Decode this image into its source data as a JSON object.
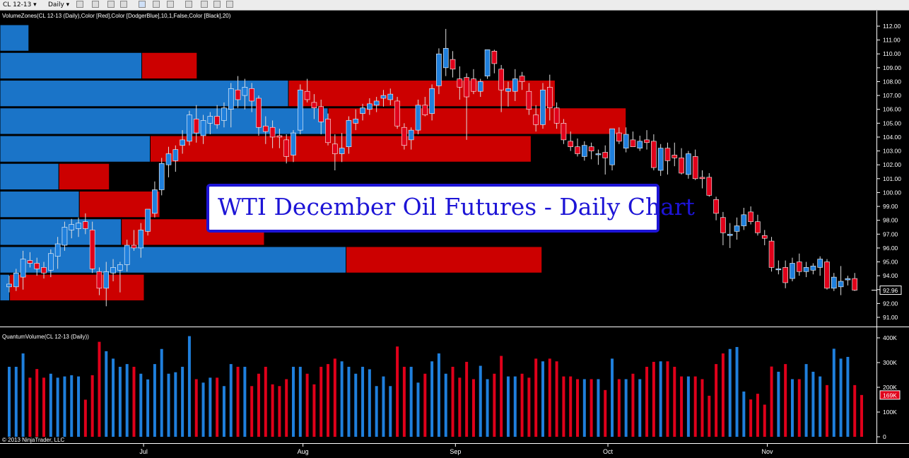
{
  "toolbar": {
    "instrument": "CL 12-13",
    "period": "Daily"
  },
  "colors": {
    "up": "#1f7fdc",
    "down": "#e0001a",
    "zone_up": "#1a74c8",
    "zone_down": "#cc0000",
    "title": "#1d14d6",
    "axis": "#ffffff",
    "background": "#000000"
  },
  "overlay_title": "WTI December Oil Futures - Daily Chart",
  "chart_data": [
    {
      "type": "candlestick",
      "indicator_label": "VolumeZones(CL 12-13 (Daily),Color [Red],Color [DodgerBlue],10,1,False,Color [Black],20)",
      "y_ticks": [
        91,
        92,
        93,
        94,
        95,
        96,
        97,
        98,
        99,
        100,
        101,
        102,
        103,
        104,
        105,
        106,
        107,
        108,
        109,
        110,
        111,
        112
      ],
      "y_tick_labels": [
        "91.00",
        "92.00",
        "93.00",
        "94.00",
        "95.00",
        "96.00",
        "97.00",
        "98.00",
        "99.00",
        "100.00",
        "101.00",
        "102.00",
        "103.00",
        "104.00",
        "105.00",
        "106.00",
        "107.00",
        "108.00",
        "109.00",
        "110.00",
        "111.00",
        "112.00"
      ],
      "ylim": [
        90.2,
        112.9
      ],
      "last_price": "92.96",
      "volume_zones": [
        {
          "price_low": 110.2,
          "price_high": 112.1,
          "up": 2.4,
          "down": 0
        },
        {
          "price_low": 108.2,
          "price_high": 110.1,
          "up": 11.8,
          "down": 4.6
        },
        {
          "price_low": 106.2,
          "price_high": 108.1,
          "up": 24.0,
          "down": 22.2
        },
        {
          "price_low": 104.2,
          "price_high": 106.1,
          "up": 27.3,
          "down": 24.8
        },
        {
          "price_low": 102.2,
          "price_high": 104.1,
          "up": 12.5,
          "down": 31.7
        },
        {
          "price_low": 100.2,
          "price_high": 102.1,
          "up": 4.9,
          "down": 4.2
        },
        {
          "price_low": 98.2,
          "price_high": 100.1,
          "up": 6.6,
          "down": 6.7
        },
        {
          "price_low": 96.2,
          "price_high": 98.1,
          "up": 10.1,
          "down": 11.9
        },
        {
          "price_low": 94.2,
          "price_high": 96.1,
          "up": 28.8,
          "down": 16.3
        },
        {
          "price_low": 92.2,
          "price_high": 94.1,
          "up": 0.8,
          "down": 11.2
        }
      ],
      "candles": [
        {
          "o": 93.2,
          "h": 94.0,
          "l": 92.8,
          "c": 93.4
        },
        {
          "o": 93.2,
          "h": 94.5,
          "l": 92.9,
          "c": 94.2
        },
        {
          "o": 93.9,
          "h": 95.8,
          "l": 93.0,
          "c": 95.2
        },
        {
          "o": 95.1,
          "h": 95.7,
          "l": 94.6,
          "c": 94.9
        },
        {
          "o": 94.9,
          "h": 95.3,
          "l": 94.0,
          "c": 94.5
        },
        {
          "o": 94.6,
          "h": 95.0,
          "l": 93.8,
          "c": 94.2
        },
        {
          "o": 94.4,
          "h": 95.9,
          "l": 93.9,
          "c": 95.6
        },
        {
          "o": 95.4,
          "h": 96.8,
          "l": 94.5,
          "c": 96.3
        },
        {
          "o": 96.2,
          "h": 97.9,
          "l": 95.8,
          "c": 97.5
        },
        {
          "o": 97.3,
          "h": 98.1,
          "l": 96.7,
          "c": 97.7
        },
        {
          "o": 97.4,
          "h": 98.2,
          "l": 96.8,
          "c": 97.8
        },
        {
          "o": 97.9,
          "h": 98.5,
          "l": 97.0,
          "c": 97.4
        },
        {
          "o": 97.3,
          "h": 97.9,
          "l": 94.2,
          "c": 94.5
        },
        {
          "o": 94.3,
          "h": 94.6,
          "l": 92.6,
          "c": 93.1
        },
        {
          "o": 93.1,
          "h": 95.0,
          "l": 91.8,
          "c": 94.3
        },
        {
          "o": 94.2,
          "h": 95.2,
          "l": 93.6,
          "c": 94.6
        },
        {
          "o": 94.4,
          "h": 95.0,
          "l": 92.8,
          "c": 94.8
        },
        {
          "o": 94.8,
          "h": 96.6,
          "l": 94.3,
          "c": 96.2
        },
        {
          "o": 96.2,
          "h": 97.3,
          "l": 95.8,
          "c": 96.0
        },
        {
          "o": 96.0,
          "h": 97.8,
          "l": 95.3,
          "c": 97.3
        },
        {
          "o": 97.2,
          "h": 98.8,
          "l": 96.9,
          "c": 98.8
        },
        {
          "o": 98.5,
          "h": 100.8,
          "l": 98.2,
          "c": 100.2
        },
        {
          "o": 100.2,
          "h": 102.5,
          "l": 99.8,
          "c": 102.1
        },
        {
          "o": 102.0,
          "h": 103.3,
          "l": 101.1,
          "c": 102.8
        },
        {
          "o": 102.3,
          "h": 103.4,
          "l": 101.5,
          "c": 103.1
        },
        {
          "o": 103.4,
          "h": 104.5,
          "l": 102.8,
          "c": 103.8
        },
        {
          "o": 103.7,
          "h": 105.9,
          "l": 103.4,
          "c": 105.6
        },
        {
          "o": 105.3,
          "h": 106.3,
          "l": 103.6,
          "c": 104.3
        },
        {
          "o": 104.1,
          "h": 105.6,
          "l": 103.5,
          "c": 105.2
        },
        {
          "o": 105.0,
          "h": 105.8,
          "l": 104.2,
          "c": 105.5
        },
        {
          "o": 105.5,
          "h": 106.3,
          "l": 104.6,
          "c": 104.9
        },
        {
          "o": 105.2,
          "h": 106.5,
          "l": 104.7,
          "c": 106.1
        },
        {
          "o": 106.0,
          "h": 107.9,
          "l": 104.7,
          "c": 107.5
        },
        {
          "o": 107.4,
          "h": 108.4,
          "l": 106.1,
          "c": 106.7
        },
        {
          "o": 107.0,
          "h": 108.2,
          "l": 106.0,
          "c": 107.6
        },
        {
          "o": 107.5,
          "h": 107.9,
          "l": 105.8,
          "c": 106.6
        },
        {
          "o": 106.8,
          "h": 107.0,
          "l": 104.1,
          "c": 104.7
        },
        {
          "o": 104.8,
          "h": 105.5,
          "l": 103.5,
          "c": 104.4
        },
        {
          "o": 104.7,
          "h": 105.2,
          "l": 103.2,
          "c": 104.0
        },
        {
          "o": 104.1,
          "h": 104.6,
          "l": 103.2,
          "c": 104.0
        },
        {
          "o": 103.8,
          "h": 104.2,
          "l": 102.1,
          "c": 102.6
        },
        {
          "o": 102.7,
          "h": 104.5,
          "l": 102.2,
          "c": 104.3
        },
        {
          "o": 104.5,
          "h": 107.8,
          "l": 104.2,
          "c": 107.4
        },
        {
          "o": 107.3,
          "h": 108.2,
          "l": 106.5,
          "c": 106.7
        },
        {
          "o": 106.5,
          "h": 107.1,
          "l": 105.3,
          "c": 106.1
        },
        {
          "o": 106.2,
          "h": 106.7,
          "l": 104.2,
          "c": 105.1
        },
        {
          "o": 105.3,
          "h": 105.7,
          "l": 103.4,
          "c": 103.6
        },
        {
          "o": 103.5,
          "h": 104.2,
          "l": 101.6,
          "c": 102.8
        },
        {
          "o": 102.8,
          "h": 104.3,
          "l": 102.2,
          "c": 103.2
        },
        {
          "o": 103.3,
          "h": 105.5,
          "l": 102.8,
          "c": 105.2
        },
        {
          "o": 105.0,
          "h": 106.0,
          "l": 104.5,
          "c": 105.3
        },
        {
          "o": 105.7,
          "h": 106.4,
          "l": 105.2,
          "c": 106.1
        },
        {
          "o": 106.0,
          "h": 106.8,
          "l": 105.6,
          "c": 106.4
        },
        {
          "o": 106.3,
          "h": 106.9,
          "l": 105.8,
          "c": 106.6
        },
        {
          "o": 106.8,
          "h": 107.4,
          "l": 106.2,
          "c": 107.0
        },
        {
          "o": 106.7,
          "h": 107.5,
          "l": 106.3,
          "c": 107.1
        },
        {
          "o": 106.6,
          "h": 106.9,
          "l": 104.6,
          "c": 104.8
        },
        {
          "o": 104.7,
          "h": 105.0,
          "l": 103.1,
          "c": 103.4
        },
        {
          "o": 103.8,
          "h": 104.7,
          "l": 103.1,
          "c": 104.5
        },
        {
          "o": 104.5,
          "h": 106.7,
          "l": 104.2,
          "c": 106.3
        },
        {
          "o": 106.3,
          "h": 106.9,
          "l": 105.5,
          "c": 105.6
        },
        {
          "o": 105.7,
          "h": 107.8,
          "l": 105.2,
          "c": 107.5
        },
        {
          "o": 107.7,
          "h": 110.4,
          "l": 107.1,
          "c": 110.0
        },
        {
          "o": 109.0,
          "h": 111.8,
          "l": 108.4,
          "c": 110.4
        },
        {
          "o": 109.6,
          "h": 110.2,
          "l": 108.3,
          "c": 108.9
        },
        {
          "o": 108.2,
          "h": 109.1,
          "l": 106.7,
          "c": 107.6
        },
        {
          "o": 108.3,
          "h": 108.6,
          "l": 103.8,
          "c": 106.9
        },
        {
          "o": 108.2,
          "h": 108.9,
          "l": 107.1,
          "c": 107.3
        },
        {
          "o": 107.3,
          "h": 108.2,
          "l": 106.9,
          "c": 108.0
        },
        {
          "o": 108.4,
          "h": 110.3,
          "l": 108.2,
          "c": 110.3
        },
        {
          "o": 110.2,
          "h": 110.3,
          "l": 108.6,
          "c": 109.3
        },
        {
          "o": 108.9,
          "h": 109.2,
          "l": 105.8,
          "c": 107.4
        },
        {
          "o": 107.3,
          "h": 108.0,
          "l": 106.2,
          "c": 107.5
        },
        {
          "o": 107.3,
          "h": 108.9,
          "l": 106.6,
          "c": 108.2
        },
        {
          "o": 108.4,
          "h": 108.7,
          "l": 107.4,
          "c": 108.0
        },
        {
          "o": 107.3,
          "h": 107.9,
          "l": 105.6,
          "c": 106.0
        },
        {
          "o": 105.6,
          "h": 106.3,
          "l": 104.4,
          "c": 104.9
        },
        {
          "o": 104.9,
          "h": 107.9,
          "l": 104.6,
          "c": 107.4
        },
        {
          "o": 107.6,
          "h": 108.5,
          "l": 105.2,
          "c": 106.1
        },
        {
          "o": 106.1,
          "h": 106.5,
          "l": 104.6,
          "c": 105.0
        },
        {
          "o": 105.0,
          "h": 105.3,
          "l": 103.5,
          "c": 103.8
        },
        {
          "o": 103.7,
          "h": 104.4,
          "l": 103.0,
          "c": 103.3
        },
        {
          "o": 103.3,
          "h": 103.9,
          "l": 102.6,
          "c": 102.8
        },
        {
          "o": 102.6,
          "h": 103.7,
          "l": 102.3,
          "c": 103.4
        },
        {
          "o": 103.3,
          "h": 103.6,
          "l": 102.4,
          "c": 103.0
        },
        {
          "o": 102.8,
          "h": 103.1,
          "l": 102.0,
          "c": 102.8
        },
        {
          "o": 102.9,
          "h": 103.4,
          "l": 101.3,
          "c": 102.5
        },
        {
          "o": 102.0,
          "h": 104.6,
          "l": 101.6,
          "c": 104.6
        },
        {
          "o": 104.3,
          "h": 104.7,
          "l": 103.5,
          "c": 103.7
        },
        {
          "o": 103.2,
          "h": 104.7,
          "l": 102.9,
          "c": 104.2
        },
        {
          "o": 103.8,
          "h": 104.4,
          "l": 103.3,
          "c": 103.3
        },
        {
          "o": 103.2,
          "h": 104.1,
          "l": 103.0,
          "c": 103.7
        },
        {
          "o": 103.8,
          "h": 104.5,
          "l": 103.1,
          "c": 103.6
        },
        {
          "o": 103.7,
          "h": 104.2,
          "l": 101.6,
          "c": 101.8
        },
        {
          "o": 101.6,
          "h": 103.5,
          "l": 101.2,
          "c": 103.2
        },
        {
          "o": 103.2,
          "h": 103.6,
          "l": 101.3,
          "c": 102.3
        },
        {
          "o": 102.7,
          "h": 103.6,
          "l": 101.9,
          "c": 102.5
        },
        {
          "o": 102.5,
          "h": 103.2,
          "l": 101.3,
          "c": 101.4
        },
        {
          "o": 101.3,
          "h": 103.0,
          "l": 101.0,
          "c": 102.8
        },
        {
          "o": 102.6,
          "h": 103.1,
          "l": 100.9,
          "c": 101.0
        },
        {
          "o": 101.1,
          "h": 101.6,
          "l": 100.3,
          "c": 101.0
        },
        {
          "o": 101.1,
          "h": 101.4,
          "l": 99.7,
          "c": 99.8
        },
        {
          "o": 99.5,
          "h": 99.7,
          "l": 98.0,
          "c": 98.5
        },
        {
          "o": 98.2,
          "h": 98.6,
          "l": 96.2,
          "c": 97.1
        },
        {
          "o": 96.9,
          "h": 97.8,
          "l": 96.0,
          "c": 97.0
        },
        {
          "o": 97.2,
          "h": 98.2,
          "l": 96.6,
          "c": 97.6
        },
        {
          "o": 97.6,
          "h": 98.9,
          "l": 97.3,
          "c": 98.4
        },
        {
          "o": 98.6,
          "h": 99.0,
          "l": 97.7,
          "c": 97.9
        },
        {
          "o": 97.9,
          "h": 98.4,
          "l": 96.9,
          "c": 97.1
        },
        {
          "o": 96.9,
          "h": 97.3,
          "l": 96.2,
          "c": 96.7
        },
        {
          "o": 96.5,
          "h": 96.8,
          "l": 94.3,
          "c": 94.6
        },
        {
          "o": 94.5,
          "h": 95.1,
          "l": 94.1,
          "c": 94.5
        },
        {
          "o": 94.6,
          "h": 95.1,
          "l": 93.1,
          "c": 93.5
        },
        {
          "o": 93.8,
          "h": 95.3,
          "l": 93.6,
          "c": 94.9
        },
        {
          "o": 95.0,
          "h": 95.6,
          "l": 94.0,
          "c": 94.3
        },
        {
          "o": 94.3,
          "h": 95.0,
          "l": 93.9,
          "c": 94.6
        },
        {
          "o": 94.4,
          "h": 94.9,
          "l": 94.1,
          "c": 94.7
        },
        {
          "o": 94.6,
          "h": 95.4,
          "l": 94.0,
          "c": 95.2
        },
        {
          "o": 95.0,
          "h": 95.2,
          "l": 93.0,
          "c": 93.1
        },
        {
          "o": 93.1,
          "h": 94.2,
          "l": 92.9,
          "c": 93.9
        },
        {
          "o": 93.2,
          "h": 94.7,
          "l": 92.6,
          "c": 93.6
        },
        {
          "o": 93.7,
          "h": 94.0,
          "l": 93.3,
          "c": 93.8
        },
        {
          "o": 93.8,
          "h": 94.2,
          "l": 92.9,
          "c": 92.96
        }
      ]
    },
    {
      "type": "bar",
      "indicator_label": "QuantumVolume(CL 12-13 (Daily))",
      "y_ticks": [
        0,
        100000,
        200000,
        300000,
        400000
      ],
      "y_tick_labels": [
        "0",
        "100K",
        "200K",
        "300K",
        "400K"
      ],
      "ylim": [
        0,
        420000
      ],
      "last_volume": "169K",
      "x_ticks": [
        {
          "label": "Jul",
          "index": 20
        },
        {
          "label": "Aug",
          "index": 43
        },
        {
          "label": "Sep",
          "index": 65
        },
        {
          "label": "Oct",
          "index": 87
        },
        {
          "label": "Nov",
          "index": 110
        }
      ],
      "volumes": [
        283000,
        283000,
        337000,
        239000,
        274000,
        239000,
        255000,
        239000,
        244000,
        249000,
        244000,
        150000,
        249000,
        384000,
        346000,
        316000,
        283000,
        294000,
        283000,
        255000,
        232000,
        294000,
        355000,
        255000,
        261000,
        283000,
        407000,
        233000,
        219000,
        239000,
        239000,
        205000,
        294000,
        283000,
        283000,
        205000,
        255000,
        283000,
        212000,
        205000,
        233000,
        283000,
        283000,
        255000,
        212000,
        283000,
        294000,
        316000,
        305000,
        283000,
        255000,
        283000,
        273000,
        205000,
        244000,
        205000,
        365000,
        283000,
        283000,
        219000,
        255000,
        305000,
        337000,
        255000,
        283000,
        239000,
        303000,
        233000,
        287000,
        233000,
        255000,
        327000,
        244000,
        244000,
        255000,
        239000,
        316000,
        305000,
        316000,
        305000,
        244000,
        244000,
        233000,
        233000,
        233000,
        233000,
        189000,
        316000,
        233000,
        233000,
        255000,
        233000,
        283000,
        303000,
        305000,
        305000,
        283000,
        244000,
        244000,
        244000,
        233000,
        166000,
        294000,
        337000,
        355000,
        363000,
        183000,
        151000,
        174000,
        130000,
        284000,
        263000,
        294000,
        233000,
        233000,
        294000,
        263000,
        244000,
        209000,
        356000,
        316000,
        323000,
        209000,
        169000
      ]
    }
  ],
  "footer": {
    "copyright": "© 2013 NinjaTrader, LLC"
  }
}
